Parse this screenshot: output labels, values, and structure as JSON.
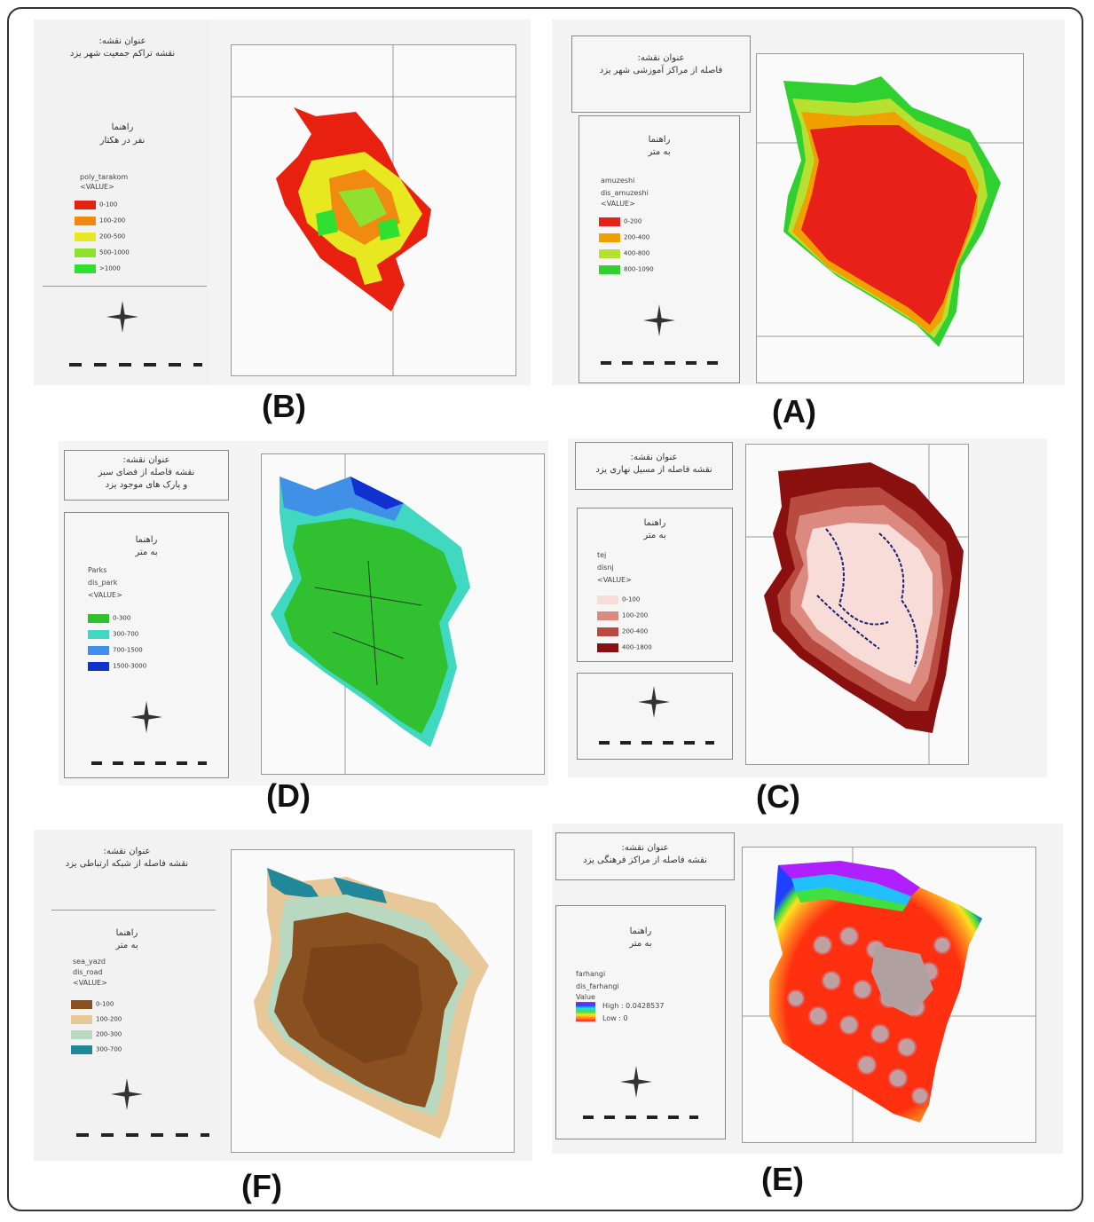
{
  "panels": {
    "A": {
      "label": "(A)",
      "title_line1": "عنوان نقشه:",
      "title_line2": "فاصله از مراکز آموزشی شهر یزد",
      "legend_title": "راهنما",
      "legend_unit": "به متر",
      "field1": "amuzeshi",
      "field2": "dis_amuzeshi",
      "field3": "<VALUE>",
      "classes": [
        "0-200",
        "200-400",
        "400-800",
        "800-1090"
      ],
      "colors": [
        "#e8201a",
        "#f0a000",
        "#b8e030",
        "#30d030"
      ]
    },
    "B": {
      "label": "(B)",
      "title_line1": "عنوان نقشه:",
      "title_line2": "نقشه تراکم جمعیت شهر یزد",
      "legend_title": "راهنما",
      "legend_unit": "نفر در هکتار",
      "field1": "poly_tarakom",
      "field2": "<VALUE>",
      "classes": [
        "0-100",
        "100-200",
        "200-500",
        "500-1000",
        ">1000"
      ],
      "colors": [
        "#e82010",
        "#f08a10",
        "#e8e820",
        "#90e030",
        "#30e030"
      ]
    },
    "C": {
      "label": "(C)",
      "title_line1": "عنوان نقشه:",
      "title_line2": "نقشه فاصله از مسیل نهاری یزد",
      "legend_title": "راهنما",
      "legend_unit": "به متر",
      "field1": "tej",
      "field2": "disnj",
      "field3": "<VALUE>",
      "classes": [
        "0-100",
        "100-200",
        "200-400",
        "400-1800"
      ],
      "colors": [
        "#f8dcd8",
        "#dc8a80",
        "#b84a40",
        "#8a1010"
      ]
    },
    "D": {
      "label": "(D)",
      "title_line1": "عنوان نقشه:",
      "title_line2": "نقشه فاصله از فضای سبز",
      "title_line3": "و پارک های موجود یزد",
      "legend_title": "راهنما",
      "legend_unit": "به متر",
      "field1": "Parks",
      "field2": "dis_park",
      "field3": "<VALUE>",
      "classes": [
        "0-300",
        "300-700",
        "700-1500",
        "1500-3000"
      ],
      "colors": [
        "#30c030",
        "#40d8c0",
        "#4090e8",
        "#1030d0"
      ]
    },
    "E": {
      "label": "(E)",
      "title_line1": "عنوان نقشه:",
      "title_line2": "نقشه فاصله از مراکز فرهنگی یزد",
      "legend_title": "راهنما",
      "legend_unit": "به متر",
      "field1": "farhangi",
      "field2": "dis_farhangi",
      "field3": "Value",
      "high_label": "High : 0.0428537",
      "low_label": "Low : 0"
    },
    "F": {
      "label": "(F)",
      "title_line1": "عنوان نقشه:",
      "title_line2": "نقشه فاصله از شبکه ارتباطی یزد",
      "legend_title": "راهنما",
      "legend_unit": "به متر",
      "field1": "sea_yazd",
      "field2": "dis_road",
      "field3": "<VALUE>",
      "classes": [
        "0-100",
        "100-200",
        "200-300",
        "300-700"
      ],
      "colors": [
        "#8a5020",
        "#e8c898",
        "#b8d8c0",
        "#208898"
      ]
    }
  }
}
